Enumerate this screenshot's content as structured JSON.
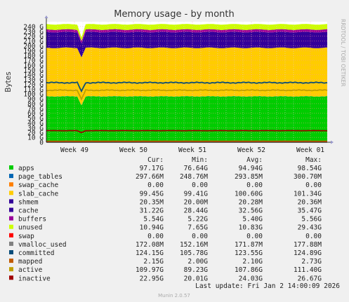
{
  "chart_data": {
    "type": "area",
    "title": "Memory usage - by month",
    "ylabel": "Bytes",
    "xlabel": "",
    "ylim": [
      0,
      250
    ],
    "y_unit": "G",
    "y_ticks": [
      0,
      10,
      20,
      30,
      40,
      50,
      60,
      70,
      80,
      90,
      100,
      110,
      120,
      130,
      140,
      150,
      160,
      170,
      180,
      190,
      200,
      210,
      220,
      230,
      240
    ],
    "x_ticks": [
      "Week 49",
      "Week 50",
      "Week 51",
      "Week 52",
      "Week 01"
    ],
    "grid": true,
    "watermark": "RRDTOOL / TOBI OETIKER",
    "columns": [
      "Cur:",
      "Min:",
      "Avg:",
      "Max:"
    ],
    "series": [
      {
        "name": "apps",
        "color": "#00cc00",
        "stacked": true,
        "values": {
          "cur": "97.17G",
          "min": "76.64G",
          "avg": "94.94G",
          "max": "98.54G"
        }
      },
      {
        "name": "page_tables",
        "color": "#0066b3",
        "stacked": true,
        "values": {
          "cur": "297.66M",
          "min": "248.76M",
          "avg": "293.85M",
          "max": "300.70M"
        }
      },
      {
        "name": "swap_cache",
        "color": "#ff8000",
        "stacked": true,
        "values": {
          "cur": "0.00",
          "min": "0.00",
          "avg": "0.00",
          "max": "0.00"
        }
      },
      {
        "name": "slab_cache",
        "color": "#ffcc00",
        "stacked": true,
        "values": {
          "cur": "99.45G",
          "min": "99.41G",
          "avg": "100.60G",
          "max": "101.34G"
        }
      },
      {
        "name": "shmem",
        "color": "#330099",
        "stacked": true,
        "values": {
          "cur": "20.35M",
          "min": "20.00M",
          "avg": "20.28M",
          "max": "20.36M"
        }
      },
      {
        "name": "cache",
        "color": "#330099",
        "stacked": true,
        "values": {
          "cur": "31.22G",
          "min": "28.44G",
          "avg": "32.56G",
          "max": "35.47G"
        }
      },
      {
        "name": "buffers",
        "color": "#990099",
        "stacked": true,
        "values": {
          "cur": "5.54G",
          "min": "5.22G",
          "avg": "5.40G",
          "max": "5.56G"
        }
      },
      {
        "name": "unused",
        "color": "#ccff00",
        "stacked": true,
        "values": {
          "cur": "10.94G",
          "min": "7.65G",
          "avg": "10.83G",
          "max": "29.43G"
        }
      },
      {
        "name": "swap",
        "color": "#ff0000",
        "stacked": true,
        "values": {
          "cur": "0.00",
          "min": "0.00",
          "avg": "0.00",
          "max": "0.00"
        }
      },
      {
        "name": "vmalloc_used",
        "color": "#808080",
        "stacked": false,
        "values": {
          "cur": "172.08M",
          "min": "152.16M",
          "avg": "171.87M",
          "max": "177.88M"
        }
      },
      {
        "name": "committed",
        "color": "#0a4d7a",
        "stacked": false,
        "values": {
          "cur": "124.15G",
          "min": "105.78G",
          "avg": "123.55G",
          "max": "124.89G"
        }
      },
      {
        "name": "mapped",
        "color": "#c05a00",
        "stacked": false,
        "values": {
          "cur": "2.15G",
          "min": "2.00G",
          "avg": "2.10G",
          "max": "2.73G"
        }
      },
      {
        "name": "active",
        "color": "#c0a000",
        "stacked": false,
        "values": {
          "cur": "109.97G",
          "min": "89.23G",
          "avg": "107.86G",
          "max": "111.40G"
        }
      },
      {
        "name": "inactive",
        "color": "#a00000",
        "stacked": false,
        "values": {
          "cur": "22.95G",
          "min": "20.01G",
          "avg": "24.03G",
          "max": "26.67G"
        }
      }
    ],
    "last_update": "Last update: Fri Jan  2 14:00:09 2026",
    "footer": "Munin 2.0.57"
  }
}
